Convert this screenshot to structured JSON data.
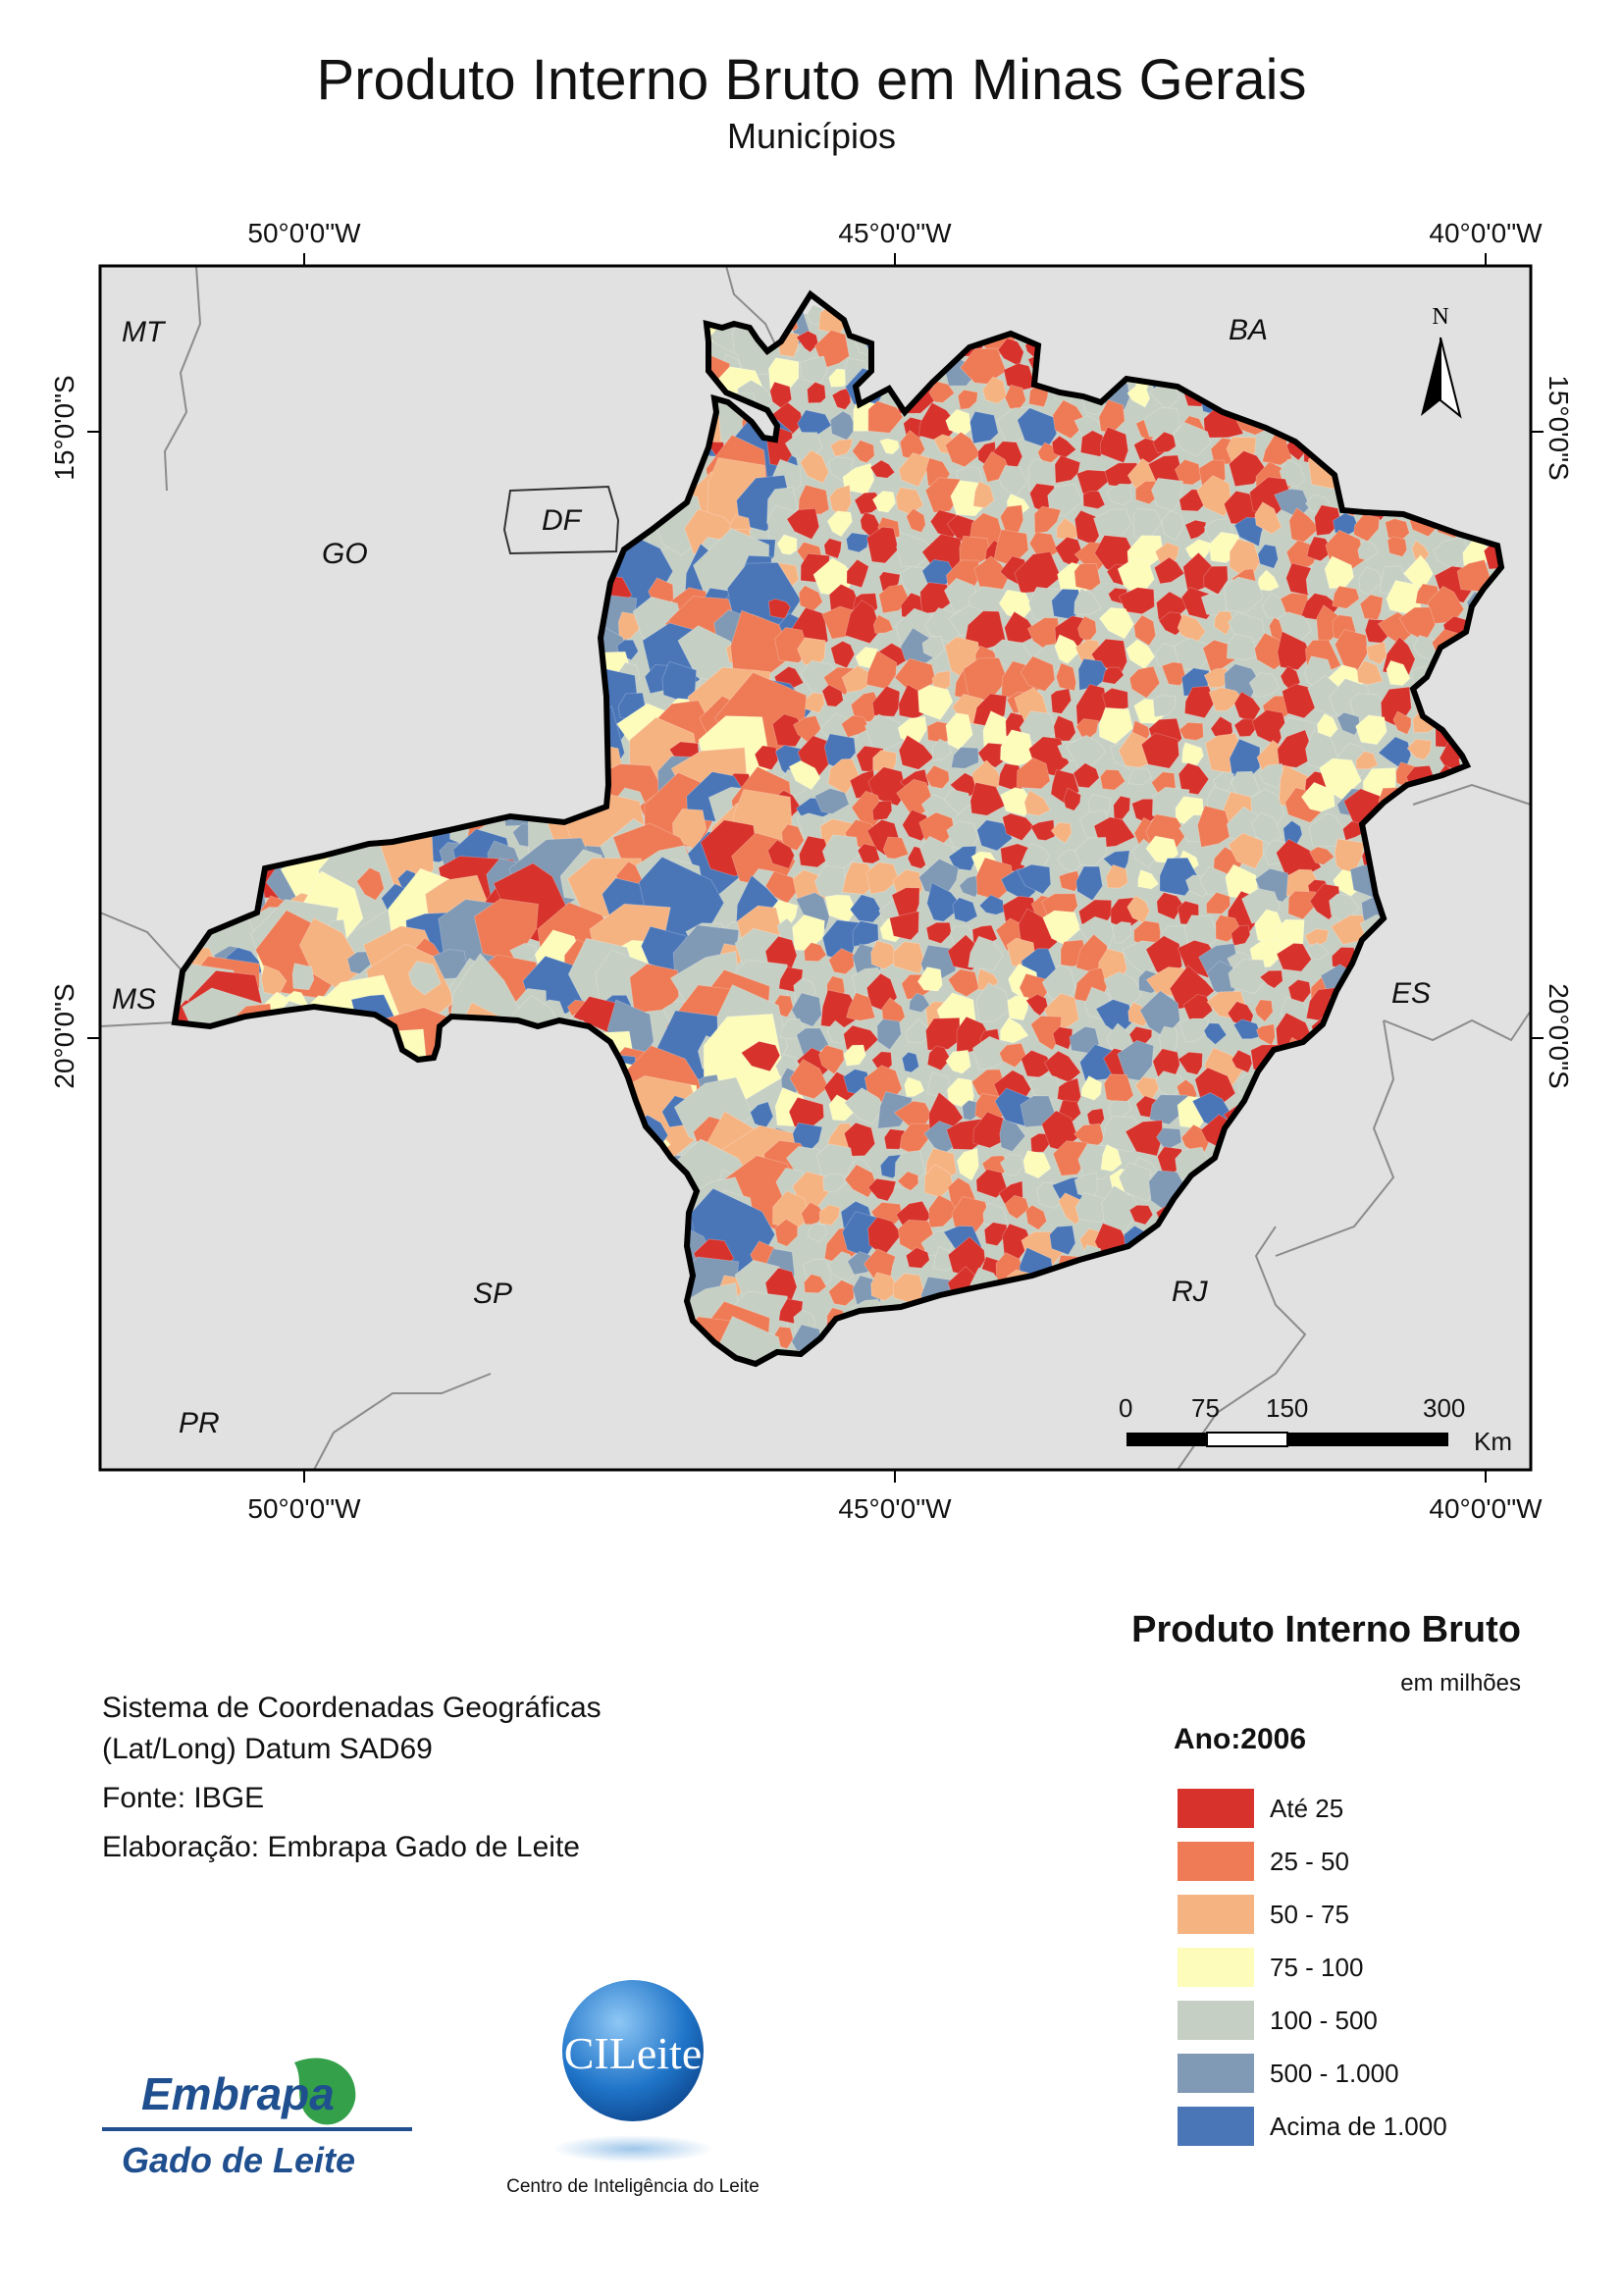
{
  "title": "Produto Interno Bruto em Minas Gerais",
  "subtitle": "Municípios",
  "graticule": {
    "top_lon": [
      "50°0'0\"W",
      "45°0'0\"W",
      "40°0'0\"W"
    ],
    "bottom_lon": [
      "50°0'0\"W",
      "45°0'0\"W",
      "40°0'0\"W"
    ],
    "left_lat": [
      "15°0'0\"S",
      "20°0'0\"S"
    ],
    "right_lat": [
      "15°0'0\"S",
      "20°0'0\"S"
    ]
  },
  "states": {
    "mt": "MT",
    "ba": "BA",
    "go": "GO",
    "df": "DF",
    "ms": "MS",
    "es": "ES",
    "sp": "SP",
    "rj": "RJ",
    "pr": "PR"
  },
  "north_arrow": "N",
  "scale_bar": {
    "ticks": [
      "0",
      "75",
      "150",
      "300"
    ],
    "unit": "Km"
  },
  "info": {
    "line1": "Sistema de Coordenadas Geográficas",
    "line2": "(Lat/Long) Datum SAD69",
    "line3": "Fonte: IBGE",
    "line4": "Elaboração: Embrapa Gado de Leite"
  },
  "legend": {
    "title": "Produto Interno Bruto",
    "unit": "em milhões",
    "year": "Ano:2006",
    "classes": [
      {
        "label": "Até 25",
        "color": "#d7322b"
      },
      {
        "label": "25 - 50",
        "color": "#ee7b55"
      },
      {
        "label": "50 - 75",
        "color": "#f6b382"
      },
      {
        "label": "75 - 100",
        "color": "#fdfcbb"
      },
      {
        "label": "100 - 500",
        "color": "#c6cfc3"
      },
      {
        "label": "500 - 1.000",
        "color": "#8099b5"
      },
      {
        "label": "Acima de 1.000",
        "color": "#4a76b8"
      }
    ]
  },
  "logos": {
    "embrapa_name": "Embrapa",
    "embrapa_unit": "Gado de Leite",
    "cileite_name": "CILeite",
    "cileite_caption": "Centro de Inteligência do Leite"
  }
}
